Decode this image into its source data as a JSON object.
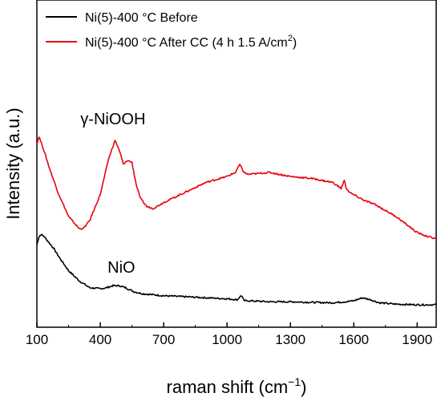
{
  "chart_data": {
    "type": "line",
    "title": "",
    "xlabel": "raman shift",
    "xlabel_unit_base": "cm",
    "xlabel_unit_exp": "−1",
    "ylabel": "Intensity (a.u.)",
    "xlim": [
      100,
      1990
    ],
    "ylim": [
      0,
      1
    ],
    "x_ticks": [
      100,
      400,
      700,
      1000,
      1300,
      1600,
      1900
    ],
    "y_ticks": [],
    "grid": false,
    "legend_position": "top-left",
    "series": [
      {
        "name": "Ni(5)-400 °C Before",
        "color": "#000000",
        "x": [
          100,
          110,
          120,
          130,
          150,
          180,
          210,
          250,
          300,
          350,
          400,
          430,
          460,
          490,
          520,
          560,
          600,
          700,
          800,
          900,
          1000,
          1050,
          1060,
          1070,
          1080,
          1100,
          1200,
          1300,
          1400,
          1500,
          1560,
          1600,
          1640,
          1680,
          1720,
          1800,
          1900,
          1990
        ],
        "y": [
          0.3,
          0.34,
          0.35,
          0.345,
          0.32,
          0.28,
          0.23,
          0.17,
          0.12,
          0.085,
          0.08,
          0.085,
          0.095,
          0.095,
          0.085,
          0.065,
          0.055,
          0.045,
          0.04,
          0.035,
          0.03,
          0.025,
          0.04,
          0.045,
          0.02,
          0.02,
          0.015,
          0.015,
          0.012,
          0.01,
          0.015,
          0.02,
          0.035,
          0.025,
          0.01,
          0.003,
          0.0,
          0.0
        ]
      },
      {
        "name": "Ni(5)-400 °C After CC (4 h 1.5 A/cm²)",
        "color": "#e8000d",
        "x": [
          100,
          110,
          130,
          160,
          200,
          250,
          300,
          320,
          350,
          400,
          440,
          470,
          490,
          510,
          530,
          550,
          570,
          590,
          620,
          650,
          700,
          800,
          900,
          1000,
          1040,
          1060,
          1070,
          1080,
          1100,
          1200,
          1300,
          1400,
          1500,
          1540,
          1555,
          1565,
          1580,
          1650,
          1700,
          1750,
          1800,
          1850,
          1900,
          1950,
          1990
        ],
        "y": [
          0.8,
          0.84,
          0.78,
          0.68,
          0.56,
          0.44,
          0.38,
          0.38,
          0.42,
          0.55,
          0.73,
          0.82,
          0.77,
          0.7,
          0.72,
          0.71,
          0.6,
          0.53,
          0.49,
          0.48,
          0.51,
          0.56,
          0.61,
          0.64,
          0.66,
          0.7,
          0.68,
          0.66,
          0.65,
          0.66,
          0.64,
          0.63,
          0.61,
          0.58,
          0.62,
          0.58,
          0.56,
          0.52,
          0.5,
          0.47,
          0.44,
          0.4,
          0.36,
          0.34,
          0.33
        ]
      }
    ],
    "annotations": [
      {
        "text": "γ-NiOOH",
        "x": 460,
        "y": 0.9
      },
      {
        "text": "NiO",
        "x": 500,
        "y": 0.16
      }
    ]
  },
  "legend": {
    "items": [
      {
        "label": "Ni(5)-400 °C Before",
        "color": "#000000"
      },
      {
        "label_base": "Ni(5)-400 °C After CC (4 h 1.5 A/cm",
        "label_sup": "2",
        "label_end": ")",
        "color": "#e8000d"
      }
    ]
  }
}
